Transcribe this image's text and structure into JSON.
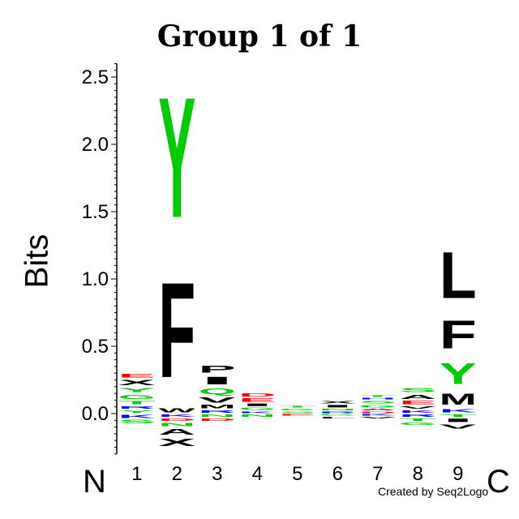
{
  "chart_data": {
    "type": "sequence-logo",
    "title": "Group 1 of 1",
    "ylabel": "Bits",
    "ylim": [
      -0.3,
      2.6
    ],
    "yticks": [
      "0.0",
      "0.5",
      "1.0",
      "1.5",
      "2.0",
      "2.5"
    ],
    "ytick_values": [
      0.0,
      0.5,
      1.0,
      1.5,
      2.0,
      2.5
    ],
    "positions": [
      "1",
      "2",
      "3",
      "4",
      "5",
      "6",
      "7",
      "8",
      "9"
    ],
    "n_terminus": "N",
    "c_terminus": "C",
    "credit": "Created by Seq2Logo",
    "colors": {
      "hydrophobic": "#000000",
      "polar": "#00cc00",
      "basic": "#0000ff",
      "acidic": "#ff0000"
    },
    "columns": [
      {
        "position": "1",
        "positive": [
          {
            "letter": "Y",
            "h": 0.03
          },
          {
            "letter": "R",
            "h": 0.03
          },
          {
            "letter": "T",
            "h": 0.04
          },
          {
            "letter": "G",
            "h": 0.05
          },
          {
            "letter": "Y",
            "h": 0.05
          },
          {
            "letter": "X",
            "h": 0.06
          },
          {
            "letter": "E",
            "h": 0.04
          }
        ],
        "negative": [
          {
            "letter": "K",
            "h": 0.04
          },
          {
            "letter": "S",
            "h": 0.04
          }
        ]
      },
      {
        "position": "2",
        "positive": [
          {
            "letter": "W",
            "h": 0.05
          },
          {
            "letter": "F",
            "h": 1.13
          },
          {
            "letter": "Y",
            "h": 1.43
          }
        ],
        "negative": [
          {
            "letter": "K",
            "h": 0.03
          },
          {
            "letter": "D",
            "h": 0.03
          },
          {
            "letter": "N",
            "h": 0.04
          },
          {
            "letter": "A",
            "h": 0.07
          },
          {
            "letter": "X",
            "h": 0.09
          }
        ]
      },
      {
        "position": "3",
        "positive": [
          {
            "letter": "R",
            "h": 0.03
          },
          {
            "letter": "M",
            "h": 0.04
          },
          {
            "letter": "V",
            "h": 0.06
          },
          {
            "letter": "Q",
            "h": 0.07
          },
          {
            "letter": "I",
            "h": 0.09
          },
          {
            "letter": "P",
            "h": 0.08
          }
        ],
        "negative": [
          {
            "letter": "N",
            "h": 0.03
          },
          {
            "letter": "D",
            "h": 0.03
          }
        ]
      },
      {
        "position": "4",
        "positive": [
          {
            "letter": "K",
            "h": 0.02
          },
          {
            "letter": "G",
            "h": 0.03
          },
          {
            "letter": "I",
            "h": 0.03
          },
          {
            "letter": "E",
            "h": 0.04
          },
          {
            "letter": "D",
            "h": 0.04
          }
        ],
        "negative": [
          {
            "letter": "N",
            "h": 0.03
          }
        ]
      },
      {
        "position": "5",
        "positive": [
          {
            "letter": "S",
            "h": 0.02
          },
          {
            "letter": "G",
            "h": 0.02
          },
          {
            "letter": "T",
            "h": 0.02
          }
        ],
        "negative": [
          {
            "letter": "E",
            "h": 0.02
          }
        ]
      },
      {
        "position": "6",
        "positive": [
          {
            "letter": "R",
            "h": 0.02
          },
          {
            "letter": "N",
            "h": 0.02
          },
          {
            "letter": "I",
            "h": 0.03
          },
          {
            "letter": "X",
            "h": 0.03
          }
        ],
        "negative": [
          {
            "letter": "G",
            "h": 0.02
          },
          {
            "letter": "L",
            "h": 0.02
          }
        ]
      },
      {
        "position": "7",
        "positive": [
          {
            "letter": "D",
            "h": 0.02
          },
          {
            "letter": "A",
            "h": 0.02
          },
          {
            "letter": "G",
            "h": 0.03
          },
          {
            "letter": "S",
            "h": 0.03
          },
          {
            "letter": "H",
            "h": 0.02
          },
          {
            "letter": "T",
            "h": 0.02
          }
        ],
        "negative": [
          {
            "letter": "K",
            "h": 0.02
          },
          {
            "letter": "V",
            "h": 0.02
          }
        ]
      },
      {
        "position": "8",
        "positive": [
          {
            "letter": "K",
            "h": 0.03
          },
          {
            "letter": "V",
            "h": 0.03
          },
          {
            "letter": "E",
            "h": 0.04
          },
          {
            "letter": "A",
            "h": 0.05
          },
          {
            "letter": "S",
            "h": 0.05
          }
        ],
        "negative": [
          {
            "letter": "R",
            "h": 0.03
          },
          {
            "letter": "T",
            "h": 0.03
          },
          {
            "letter": "G",
            "h": 0.03
          }
        ]
      },
      {
        "position": "9",
        "positive": [
          {
            "letter": "K",
            "h": 0.04
          },
          {
            "letter": "M",
            "h": 0.13
          },
          {
            "letter": "Y",
            "h": 0.25
          },
          {
            "letter": "F",
            "h": 0.33
          },
          {
            "letter": "L",
            "h": 0.55
          }
        ],
        "negative": [
          {
            "letter": "T",
            "h": 0.03
          },
          {
            "letter": "I",
            "h": 0.04
          },
          {
            "letter": "V",
            "h": 0.05
          }
        ]
      }
    ]
  }
}
